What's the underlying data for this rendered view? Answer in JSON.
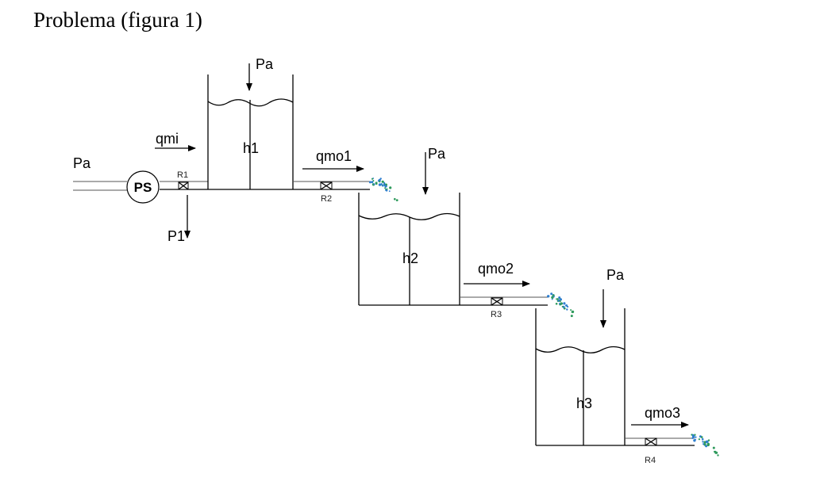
{
  "title": "Problema (figura 1)",
  "labels": {
    "pa_inlet": "Pa",
    "pa_tank1": "Pa",
    "pa_tank2": "Pa",
    "pa_tank3": "Pa",
    "pump": "PS",
    "qmi": "qmi",
    "p1": "P1",
    "r1": "R1",
    "r2": "R2",
    "r3": "R3",
    "r4": "R4",
    "h1": "h1",
    "h2": "h2",
    "h3": "h3",
    "qmo1": "qmo1",
    "qmo2": "qmo2",
    "qmo3": "qmo3"
  },
  "colors": {
    "spray_blue": "#2f7fd0",
    "spray_green": "#2e9a5c"
  }
}
